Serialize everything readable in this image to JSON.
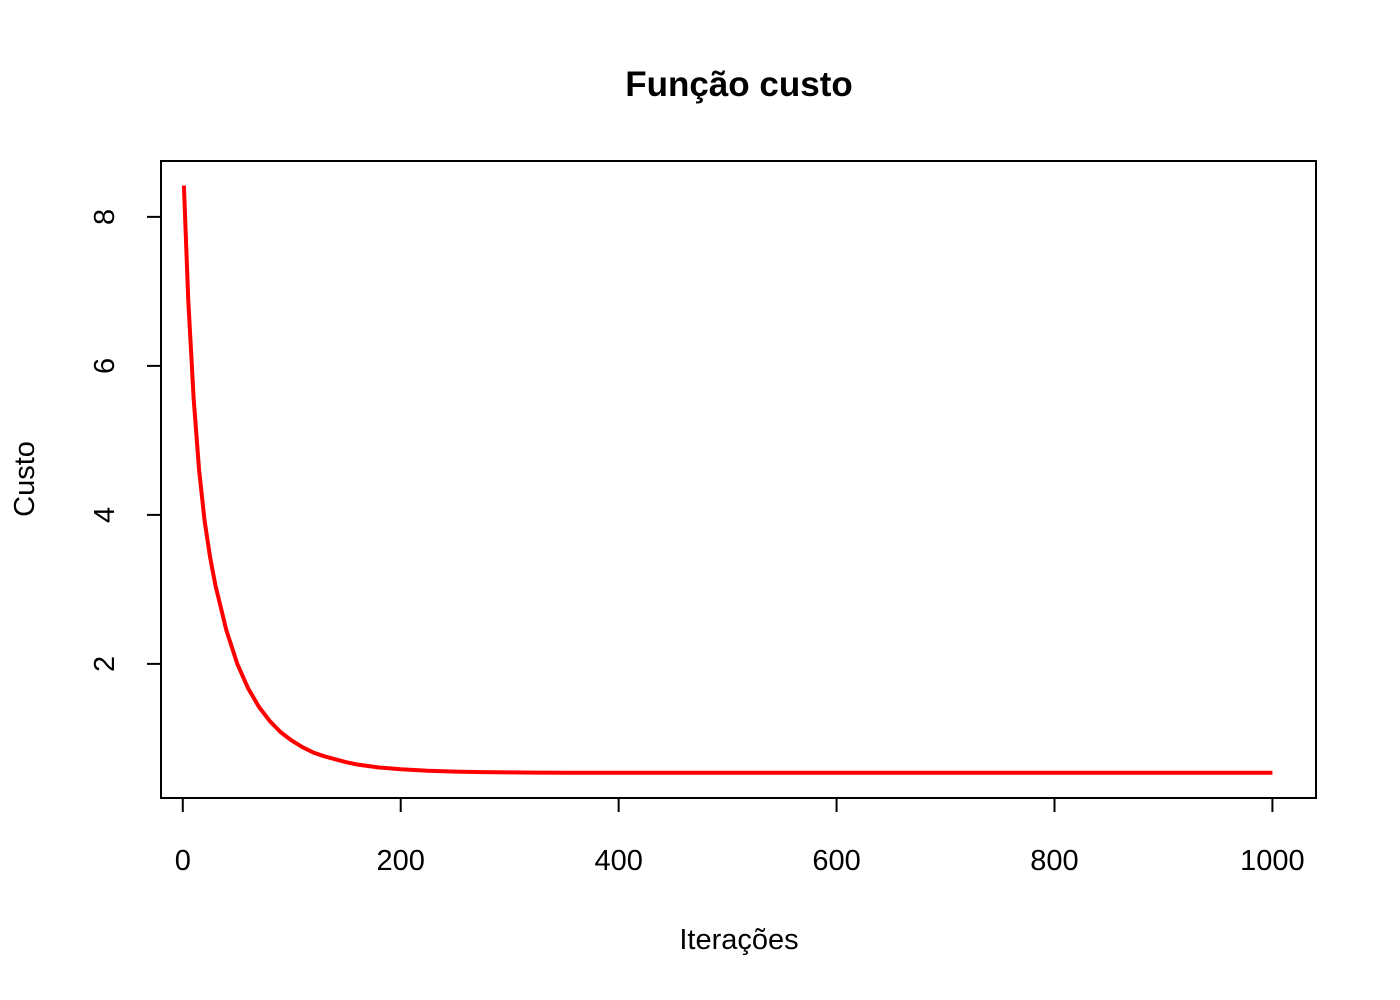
{
  "chart_data": {
    "type": "line",
    "title": "Função custo",
    "xlabel": "Iterações",
    "ylabel": "Custo",
    "xlim": [
      -20,
      1040
    ],
    "ylim": [
      0.2,
      8.75
    ],
    "xticks": [
      0,
      200,
      400,
      600,
      800,
      1000
    ],
    "yticks": [
      2,
      4,
      6,
      8
    ],
    "line_color": "#ff0000",
    "series": [
      {
        "x": [
          1,
          5,
          10,
          15,
          20,
          25,
          30,
          40,
          50,
          60,
          70,
          80,
          90,
          100,
          110,
          120,
          130,
          140,
          150,
          160,
          180,
          200,
          225,
          250,
          275,
          300,
          325,
          350,
          400,
          450,
          500,
          600,
          700,
          800,
          900,
          1000
        ],
        "y": [
          8.42,
          6.9,
          5.55,
          4.6,
          3.92,
          3.44,
          3.05,
          2.45,
          2.0,
          1.67,
          1.42,
          1.23,
          1.08,
          0.97,
          0.88,
          0.81,
          0.76,
          0.72,
          0.68,
          0.65,
          0.61,
          0.585,
          0.565,
          0.555,
          0.548,
          0.544,
          0.541,
          0.54,
          0.539,
          0.538,
          0.538,
          0.538,
          0.538,
          0.538,
          0.538,
          0.538
        ]
      }
    ]
  }
}
